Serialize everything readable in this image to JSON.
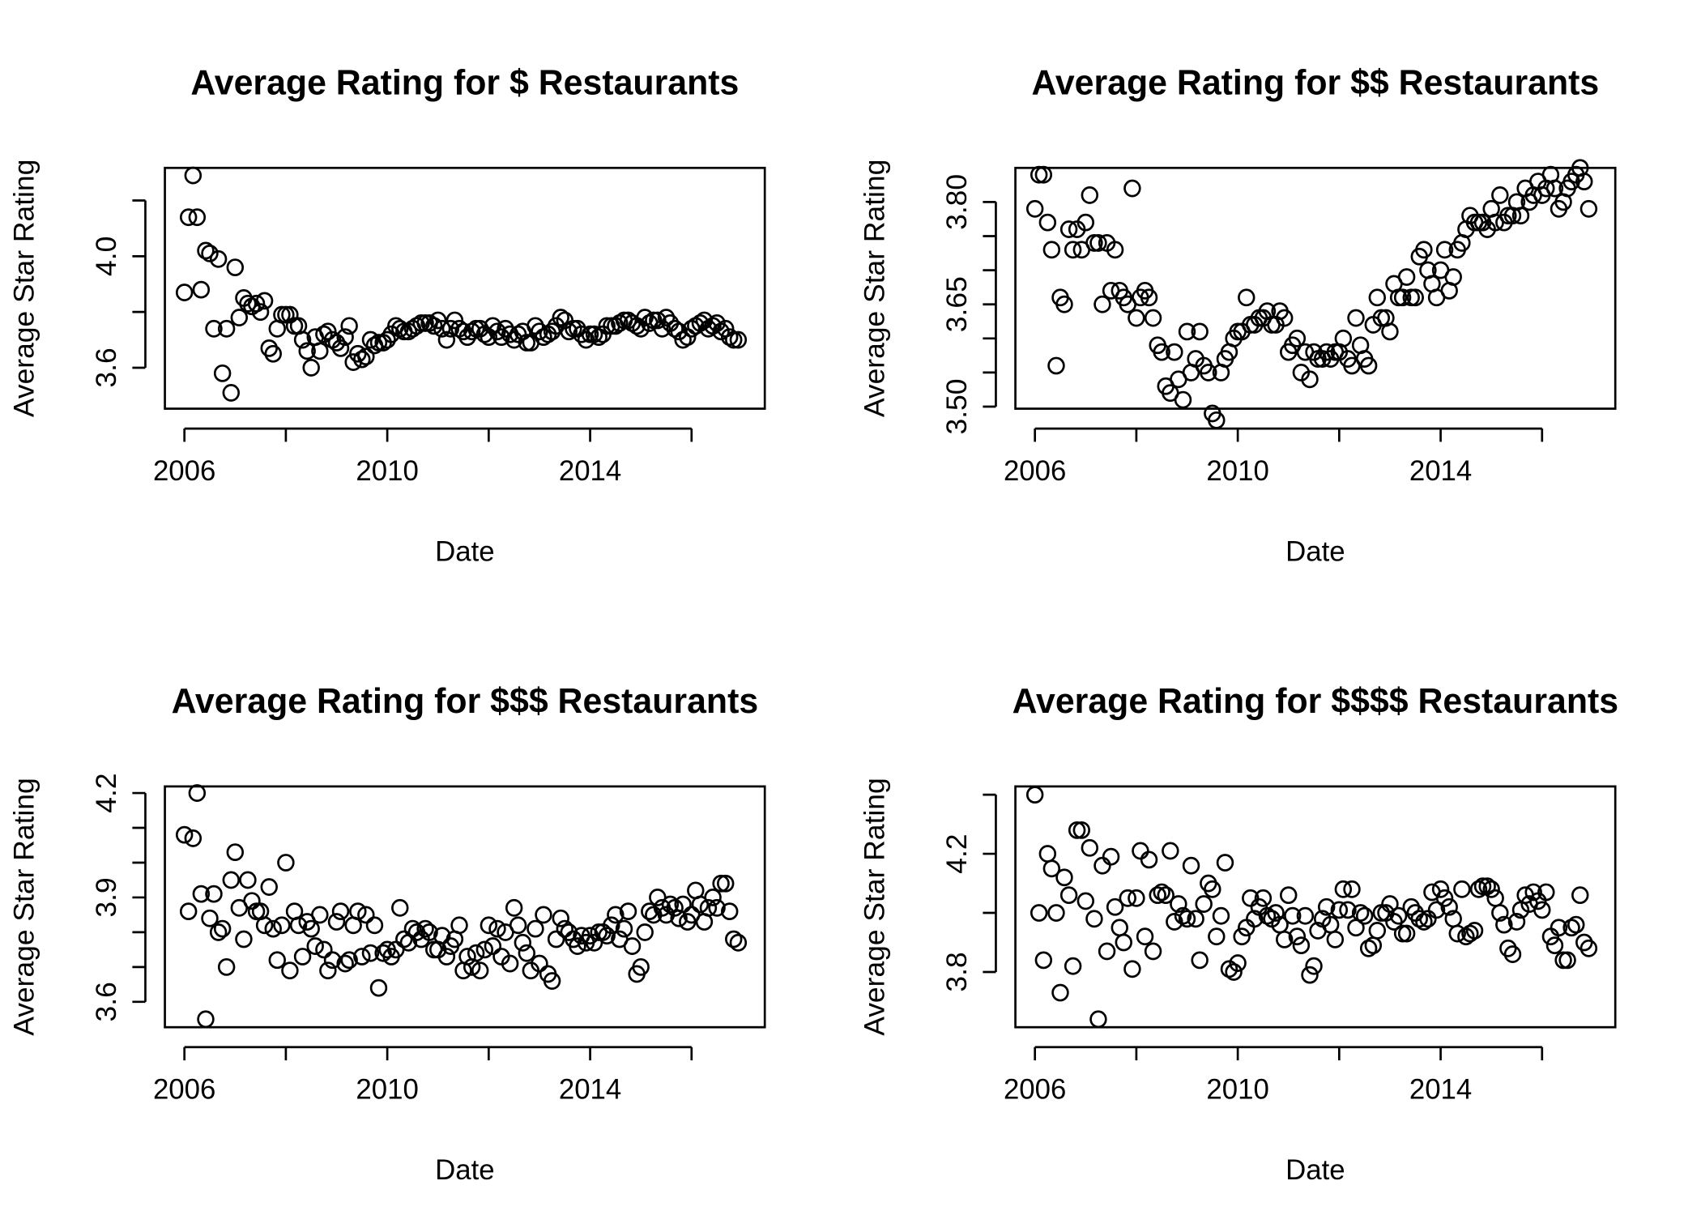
{
  "chart_data": [
    {
      "type": "scatter",
      "title": "Average Rating for $ Restaurants",
      "xlabel": "Date",
      "ylabel": "Average Star Rating",
      "color": "#000000",
      "x": [
        2006,
        2006.08,
        2006.17,
        2006.25,
        2006.33,
        2006.42,
        2006.5,
        2006.58,
        2006.67,
        2006.75,
        2006.83,
        2006.92,
        2007,
        2007.08,
        2007.17,
        2007.25,
        2007.33,
        2007.42,
        2007.5,
        2007.58,
        2007.67,
        2007.75,
        2007.83,
        2007.92,
        2008,
        2008.08,
        2008.17,
        2008.25,
        2008.33,
        2008.42,
        2008.5,
        2008.58,
        2008.67,
        2008.75,
        2008.83,
        2008.92,
        2009,
        2009.08,
        2009.17,
        2009.25,
        2009.33,
        2009.42,
        2009.5,
        2009.58,
        2009.67,
        2009.75,
        2009.83,
        2009.92,
        2010,
        2010.08,
        2010.17,
        2010.25,
        2010.33,
        2010.42,
        2010.5,
        2010.58,
        2010.67,
        2010.75,
        2010.83,
        2010.92,
        2011,
        2011.08,
        2011.17,
        2011.25,
        2011.33,
        2011.42,
        2011.5,
        2011.58,
        2011.67,
        2011.75,
        2011.83,
        2011.92,
        2012,
        2012.08,
        2012.17,
        2012.25,
        2012.33,
        2012.42,
        2012.5,
        2012.58,
        2012.67,
        2012.75,
        2012.83,
        2012.92,
        2013,
        2013.08,
        2013.17,
        2013.25,
        2013.33,
        2013.42,
        2013.5,
        2013.58,
        2013.67,
        2013.75,
        2013.83,
        2013.92,
        2014,
        2014.08,
        2014.17,
        2014.25,
        2014.33,
        2014.42,
        2014.5,
        2014.58,
        2014.67,
        2014.75,
        2014.83,
        2014.92,
        2015,
        2015.08,
        2015.17,
        2015.25,
        2015.33,
        2015.42,
        2015.5,
        2015.58,
        2015.67,
        2015.75,
        2015.83,
        2015.92,
        2016,
        2016.08,
        2016.17,
        2016.25,
        2016.33,
        2016.42,
        2016.5,
        2016.58,
        2016.67,
        2016.75,
        2016.83,
        2016.92
      ],
      "values": [
        3.87,
        4.14,
        4.29,
        4.14,
        3.88,
        4.02,
        4.01,
        3.74,
        3.99,
        3.58,
        3.74,
        3.51,
        3.96,
        3.78,
        3.85,
        3.83,
        3.82,
        3.83,
        3.8,
        3.84,
        3.67,
        3.65,
        3.74,
        3.79,
        3.79,
        3.79,
        3.75,
        3.75,
        3.7,
        3.66,
        3.6,
        3.71,
        3.66,
        3.72,
        3.73,
        3.7,
        3.69,
        3.67,
        3.71,
        3.75,
        3.62,
        3.65,
        3.63,
        3.64,
        3.7,
        3.68,
        3.69,
        3.69,
        3.7,
        3.72,
        3.75,
        3.74,
        3.73,
        3.73,
        3.74,
        3.75,
        3.76,
        3.76,
        3.76,
        3.75,
        3.77,
        3.74,
        3.7,
        3.74,
        3.77,
        3.74,
        3.73,
        3.71,
        3.73,
        3.74,
        3.74,
        3.72,
        3.71,
        3.75,
        3.73,
        3.71,
        3.74,
        3.72,
        3.7,
        3.72,
        3.73,
        3.69,
        3.69,
        3.75,
        3.73,
        3.71,
        3.72,
        3.73,
        3.75,
        3.78,
        3.77,
        3.73,
        3.74,
        3.74,
        3.72,
        3.7,
        3.72,
        3.72,
        3.71,
        3.72,
        3.75,
        3.75,
        3.75,
        3.76,
        3.77,
        3.77,
        3.76,
        3.75,
        3.74,
        3.78,
        3.76,
        3.77,
        3.77,
        3.74,
        3.78,
        3.76,
        3.74,
        3.73,
        3.7,
        3.71,
        3.74,
        3.75,
        3.76,
        3.77,
        3.74,
        3.75,
        3.76,
        3.73,
        3.74,
        3.71,
        3.7,
        3.7
      ],
      "xlim": [
        2005.615,
        2017.444
      ],
      "xticks": [
        2006,
        {
          "value": 2008,
          "label": null
        },
        2010,
        {
          "value": 2012,
          "label": null
        },
        2014,
        {
          "value": 2016,
          "label": null
        }
      ],
      "ylim": [
        3.453,
        4.317
      ],
      "yticks": [
        3.6,
        {
          "value": 3.8,
          "label": null
        },
        {
          "value": 4,
          "label": "4.0"
        },
        {
          "value": 4.2,
          "label": null
        }
      ]
    },
    {
      "type": "scatter",
      "title": "Average Rating for $$ Restaurants",
      "xlabel": "Date",
      "ylabel": "Average Star Rating",
      "color": "#000000",
      "x": [
        2006,
        2006.08,
        2006.17,
        2006.25,
        2006.33,
        2006.42,
        2006.5,
        2006.58,
        2006.67,
        2006.75,
        2006.83,
        2006.92,
        2007,
        2007.08,
        2007.17,
        2007.25,
        2007.33,
        2007.42,
        2007.5,
        2007.58,
        2007.67,
        2007.75,
        2007.83,
        2007.92,
        2008,
        2008.08,
        2008.17,
        2008.25,
        2008.33,
        2008.42,
        2008.5,
        2008.58,
        2008.67,
        2008.75,
        2008.83,
        2008.92,
        2009,
        2009.08,
        2009.17,
        2009.25,
        2009.33,
        2009.42,
        2009.5,
        2009.58,
        2009.67,
        2009.75,
        2009.83,
        2009.92,
        2010,
        2010.08,
        2010.17,
        2010.25,
        2010.33,
        2010.42,
        2010.5,
        2010.58,
        2010.67,
        2010.75,
        2010.83,
        2010.92,
        2011,
        2011.08,
        2011.17,
        2011.25,
        2011.33,
        2011.42,
        2011.5,
        2011.58,
        2011.67,
        2011.75,
        2011.83,
        2011.92,
        2012,
        2012.08,
        2012.17,
        2012.25,
        2012.33,
        2012.42,
        2012.5,
        2012.58,
        2012.67,
        2012.75,
        2012.83,
        2012.92,
        2013,
        2013.08,
        2013.17,
        2013.25,
        2013.33,
        2013.42,
        2013.5,
        2013.58,
        2013.67,
        2013.75,
        2013.83,
        2013.92,
        2014,
        2014.08,
        2014.17,
        2014.25,
        2014.33,
        2014.42,
        2014.5,
        2014.58,
        2014.67,
        2014.75,
        2014.83,
        2014.92,
        2015,
        2015.08,
        2015.17,
        2015.25,
        2015.33,
        2015.42,
        2015.5,
        2015.58,
        2015.67,
        2015.75,
        2015.83,
        2015.92,
        2016,
        2016.08,
        2016.17,
        2016.25,
        2016.33,
        2016.42,
        2016.5,
        2016.58,
        2016.67,
        2016.75,
        2016.83,
        2016.92
      ],
      "values": [
        3.79,
        3.84,
        3.84,
        3.77,
        3.73,
        3.56,
        3.66,
        3.65,
        3.76,
        3.73,
        3.76,
        3.73,
        3.77,
        3.81,
        3.74,
        3.74,
        3.65,
        3.74,
        3.67,
        3.73,
        3.67,
        3.66,
        3.65,
        3.82,
        3.63,
        3.66,
        3.67,
        3.66,
        3.63,
        3.59,
        3.58,
        3.53,
        3.52,
        3.58,
        3.54,
        3.51,
        3.61,
        3.55,
        3.57,
        3.61,
        3.56,
        3.55,
        3.49,
        3.48,
        3.55,
        3.57,
        3.58,
        3.6,
        3.61,
        3.61,
        3.66,
        3.62,
        3.62,
        3.63,
        3.63,
        3.64,
        3.62,
        3.62,
        3.64,
        3.63,
        3.58,
        3.59,
        3.6,
        3.55,
        3.58,
        3.54,
        3.58,
        3.57,
        3.57,
        3.58,
        3.57,
        3.58,
        3.58,
        3.6,
        3.57,
        3.56,
        3.63,
        3.59,
        3.57,
        3.56,
        3.62,
        3.66,
        3.63,
        3.63,
        3.61,
        3.68,
        3.66,
        3.66,
        3.69,
        3.66,
        3.66,
        3.72,
        3.73,
        3.7,
        3.68,
        3.66,
        3.7,
        3.73,
        3.67,
        3.69,
        3.73,
        3.74,
        3.76,
        3.78,
        3.77,
        3.77,
        3.77,
        3.76,
        3.79,
        3.77,
        3.81,
        3.77,
        3.78,
        3.78,
        3.8,
        3.78,
        3.82,
        3.8,
        3.81,
        3.83,
        3.81,
        3.82,
        3.84,
        3.82,
        3.79,
        3.8,
        3.82,
        3.83,
        3.84,
        3.85,
        3.83,
        3.79
      ],
      "xlim": [
        2005.615,
        2017.444
      ],
      "xticks": [
        2006,
        {
          "value": 2008,
          "label": null
        },
        2010,
        {
          "value": 2012,
          "label": null
        },
        2014,
        {
          "value": 2016,
          "label": null
        }
      ],
      "ylim": [
        3.497,
        3.85
      ],
      "yticks": [
        {
          "value": 3.5,
          "label": "3.50"
        },
        {
          "value": 3.55,
          "label": null
        },
        {
          "value": 3.6,
          "label": null
        },
        3.65,
        {
          "value": 3.7,
          "label": null
        },
        {
          "value": 3.75,
          "label": null
        },
        {
          "value": 3.8,
          "label": "3.80"
        }
      ]
    },
    {
      "type": "scatter",
      "title": "Average Rating for $$$ Restaurants",
      "xlabel": "Date",
      "ylabel": "Average Star Rating",
      "color": "#000000",
      "x": [
        2006,
        2006.08,
        2006.17,
        2006.25,
        2006.33,
        2006.42,
        2006.5,
        2006.58,
        2006.67,
        2006.75,
        2006.83,
        2006.92,
        2007,
        2007.08,
        2007.17,
        2007.25,
        2007.33,
        2007.42,
        2007.5,
        2007.58,
        2007.67,
        2007.75,
        2007.83,
        2007.92,
        2008,
        2008.08,
        2008.17,
        2008.25,
        2008.33,
        2008.42,
        2008.5,
        2008.58,
        2008.67,
        2008.75,
        2008.83,
        2008.92,
        2009,
        2009.08,
        2009.17,
        2009.25,
        2009.33,
        2009.42,
        2009.5,
        2009.58,
        2009.67,
        2009.75,
        2009.83,
        2009.92,
        2010,
        2010.08,
        2010.17,
        2010.25,
        2010.33,
        2010.42,
        2010.5,
        2010.58,
        2010.67,
        2010.75,
        2010.83,
        2010.92,
        2011,
        2011.08,
        2011.17,
        2011.25,
        2011.33,
        2011.42,
        2011.5,
        2011.58,
        2011.67,
        2011.75,
        2011.83,
        2011.92,
        2012,
        2012.08,
        2012.17,
        2012.25,
        2012.33,
        2012.42,
        2012.5,
        2012.58,
        2012.67,
        2012.75,
        2012.83,
        2012.92,
        2013,
        2013.08,
        2013.17,
        2013.25,
        2013.33,
        2013.42,
        2013.5,
        2013.58,
        2013.67,
        2013.75,
        2013.83,
        2013.92,
        2014,
        2014.08,
        2014.17,
        2014.25,
        2014.33,
        2014.42,
        2014.5,
        2014.58,
        2014.67,
        2014.75,
        2014.83,
        2014.92,
        2015,
        2015.08,
        2015.17,
        2015.25,
        2015.33,
        2015.42,
        2015.5,
        2015.58,
        2015.67,
        2015.75,
        2015.83,
        2015.92,
        2016,
        2016.08,
        2016.17,
        2016.25,
        2016.33,
        2016.42,
        2016.5,
        2016.58,
        2016.67,
        2016.75,
        2016.83,
        2016.92
      ],
      "values": [
        4.08,
        3.86,
        4.07,
        4.2,
        3.91,
        3.55,
        3.84,
        3.91,
        3.8,
        3.81,
        3.7,
        3.95,
        4.03,
        3.87,
        3.78,
        3.95,
        3.89,
        3.86,
        3.86,
        3.82,
        3.93,
        3.81,
        3.72,
        3.82,
        4,
        3.69,
        3.86,
        3.82,
        3.73,
        3.83,
        3.81,
        3.76,
        3.85,
        3.75,
        3.69,
        3.72,
        3.83,
        3.86,
        3.71,
        3.72,
        3.82,
        3.86,
        3.73,
        3.85,
        3.74,
        3.82,
        3.64,
        3.74,
        3.75,
        3.73,
        3.75,
        3.87,
        3.78,
        3.77,
        3.81,
        3.8,
        3.78,
        3.81,
        3.8,
        3.75,
        3.75,
        3.79,
        3.73,
        3.76,
        3.78,
        3.82,
        3.69,
        3.73,
        3.7,
        3.74,
        3.69,
        3.75,
        3.82,
        3.76,
        3.81,
        3.73,
        3.8,
        3.71,
        3.87,
        3.82,
        3.77,
        3.74,
        3.69,
        3.81,
        3.71,
        3.85,
        3.68,
        3.66,
        3.78,
        3.84,
        3.81,
        3.8,
        3.78,
        3.76,
        3.79,
        3.77,
        3.79,
        3.77,
        3.8,
        3.8,
        3.79,
        3.82,
        3.85,
        3.78,
        3.81,
        3.86,
        3.76,
        3.68,
        3.7,
        3.8,
        3.86,
        3.85,
        3.9,
        3.87,
        3.85,
        3.88,
        3.87,
        3.84,
        3.88,
        3.83,
        3.85,
        3.92,
        3.88,
        3.83,
        3.87,
        3.9,
        3.87,
        3.94,
        3.94,
        3.86,
        3.78,
        3.77
      ],
      "xlim": [
        2005.615,
        2017.444
      ],
      "xticks": [
        2006,
        {
          "value": 2008,
          "label": null
        },
        2010,
        {
          "value": 2012,
          "label": null
        },
        2014,
        {
          "value": 2016,
          "label": null
        }
      ],
      "ylim": [
        3.527,
        4.219
      ],
      "yticks": [
        3.6,
        {
          "value": 3.7,
          "label": null
        },
        {
          "value": 3.8,
          "label": null
        },
        3.9,
        {
          "value": 4,
          "label": null
        },
        {
          "value": 4.1,
          "label": null
        },
        4.2
      ]
    },
    {
      "type": "scatter",
      "title": "Average Rating for $$$$ Restaurants",
      "xlabel": "Date",
      "ylabel": "Average Star Rating",
      "color": "#000000",
      "x": [
        2006,
        2006.08,
        2006.17,
        2006.25,
        2006.33,
        2006.42,
        2006.5,
        2006.58,
        2006.67,
        2006.75,
        2006.83,
        2006.92,
        2007,
        2007.08,
        2007.17,
        2007.25,
        2007.33,
        2007.42,
        2007.5,
        2007.58,
        2007.67,
        2007.75,
        2007.83,
        2007.92,
        2008,
        2008.08,
        2008.17,
        2008.25,
        2008.33,
        2008.42,
        2008.5,
        2008.58,
        2008.67,
        2008.75,
        2008.83,
        2008.92,
        2009,
        2009.08,
        2009.17,
        2009.25,
        2009.33,
        2009.42,
        2009.5,
        2009.58,
        2009.67,
        2009.75,
        2009.83,
        2009.92,
        2010,
        2010.08,
        2010.17,
        2010.25,
        2010.33,
        2010.42,
        2010.5,
        2010.58,
        2010.67,
        2010.75,
        2010.83,
        2010.92,
        2011,
        2011.08,
        2011.17,
        2011.25,
        2011.33,
        2011.42,
        2011.5,
        2011.58,
        2011.67,
        2011.75,
        2011.83,
        2011.92,
        2012,
        2012.08,
        2012.17,
        2012.25,
        2012.33,
        2012.42,
        2012.5,
        2012.58,
        2012.67,
        2012.75,
        2012.83,
        2012.92,
        2013,
        2013.08,
        2013.17,
        2013.25,
        2013.33,
        2013.42,
        2013.5,
        2013.58,
        2013.67,
        2013.75,
        2013.83,
        2013.92,
        2014,
        2014.08,
        2014.17,
        2014.25,
        2014.33,
        2014.42,
        2014.5,
        2014.58,
        2014.67,
        2014.75,
        2014.83,
        2014.92,
        2015,
        2015.08,
        2015.17,
        2015.25,
        2015.33,
        2015.42,
        2015.5,
        2015.58,
        2015.67,
        2015.75,
        2015.83,
        2015.92,
        2016,
        2016.08,
        2016.17,
        2016.25,
        2016.33,
        2016.42,
        2016.5,
        2016.58,
        2016.67,
        2016.75,
        2016.83,
        2016.92
      ],
      "values": [
        4.4,
        4,
        3.84,
        4.2,
        4.15,
        4,
        3.73,
        4.12,
        4.06,
        3.82,
        4.28,
        4.28,
        4.04,
        4.22,
        3.98,
        3.64,
        4.16,
        3.87,
        4.19,
        4.02,
        3.95,
        3.9,
        4.05,
        3.81,
        4.05,
        4.21,
        3.92,
        4.18,
        3.87,
        4.06,
        4.07,
        4.06,
        4.21,
        3.97,
        4.03,
        3.99,
        3.98,
        4.16,
        3.98,
        3.84,
        4.03,
        4.1,
        4.08,
        3.92,
        3.99,
        4.17,
        3.81,
        3.8,
        3.83,
        3.92,
        3.95,
        4.05,
        3.98,
        4.02,
        4.05,
        3.99,
        3.98,
        4,
        3.96,
        3.91,
        4.06,
        3.99,
        3.92,
        3.89,
        3.99,
        3.79,
        3.82,
        3.94,
        3.98,
        4.02,
        3.96,
        3.91,
        4.01,
        4.08,
        4.01,
        4.08,
        3.95,
        4,
        3.99,
        3.88,
        3.89,
        3.94,
        4,
        4,
        4.03,
        3.97,
        3.99,
        3.93,
        3.93,
        4.02,
        4,
        3.98,
        3.97,
        3.98,
        4.07,
        4.01,
        4.08,
        4.05,
        4.02,
        3.98,
        3.93,
        4.08,
        3.92,
        3.93,
        3.94,
        4.08,
        4.09,
        4.09,
        4.08,
        4.05,
        4,
        3.96,
        3.88,
        3.86,
        3.97,
        4.01,
        4.06,
        4.03,
        4.07,
        4.04,
        4.01,
        4.07,
        3.92,
        3.89,
        3.95,
        3.84,
        3.84,
        3.95,
        3.96,
        4.06,
        3.9,
        3.88
      ],
      "xlim": [
        2005.615,
        2017.444
      ],
      "xticks": [
        2006,
        {
          "value": 2008,
          "label": null
        },
        2010,
        {
          "value": 2012,
          "label": null
        },
        2014,
        {
          "value": 2016,
          "label": null
        }
      ],
      "ylim": [
        3.613,
        4.428
      ],
      "yticks": [
        3.8,
        {
          "value": 4,
          "label": null
        },
        4.2,
        {
          "value": 4.4,
          "label": null
        }
      ]
    }
  ]
}
